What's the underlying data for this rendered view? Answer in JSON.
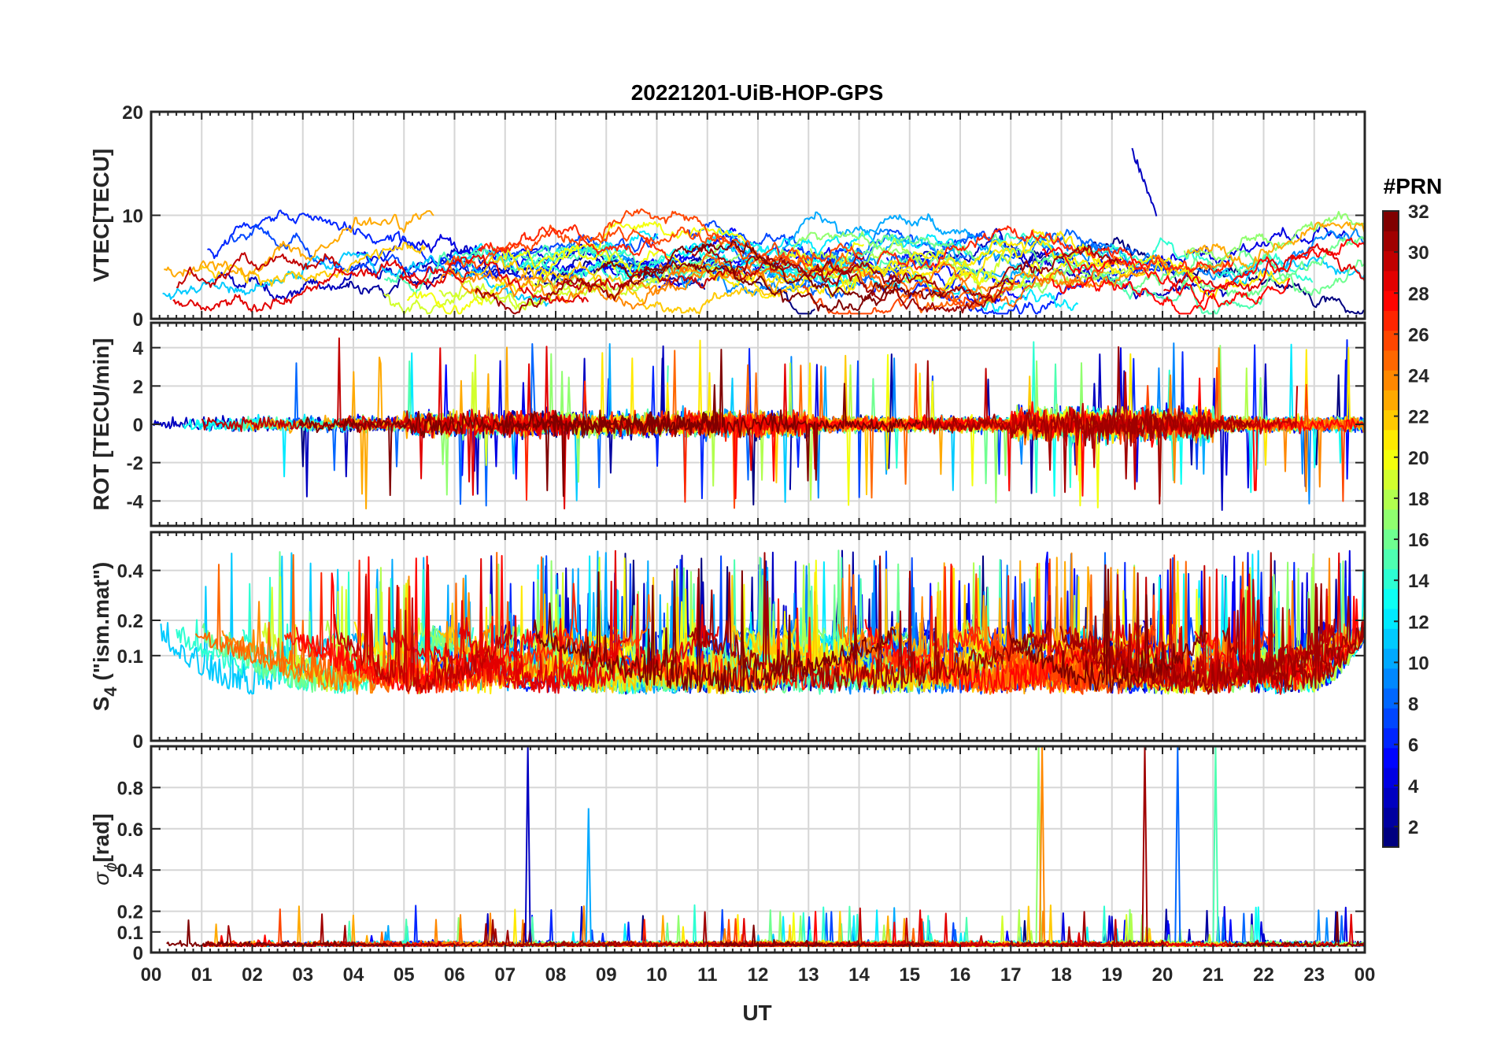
{
  "chart_data": {
    "type": "line",
    "title": "20221201-UiB-HOP-GPS",
    "xlabel": "UT",
    "x_tick_labels": [
      "00",
      "01",
      "02",
      "03",
      "04",
      "05",
      "06",
      "07",
      "08",
      "09",
      "10",
      "11",
      "12",
      "13",
      "14",
      "15",
      "16",
      "17",
      "18",
      "19",
      "20",
      "21",
      "22",
      "23",
      "00"
    ],
    "xlim_hours": [
      0,
      24
    ],
    "grid": true,
    "colorbar": {
      "title": "#PRN",
      "colormap": "jet",
      "range": [
        1,
        32
      ],
      "ticks": [
        2,
        4,
        6,
        8,
        10,
        12,
        14,
        16,
        18,
        20,
        22,
        24,
        26,
        28,
        30,
        32
      ],
      "tick_labels": [
        "2",
        "4",
        "6",
        "8",
        "10",
        "12",
        "14",
        "16",
        "18",
        "20",
        "22",
        "24",
        "26",
        "28",
        "30",
        "32"
      ]
    },
    "panels": [
      {
        "name": "vtec",
        "ylabel": "VTEC[TECU]",
        "ylim": [
          0,
          20
        ],
        "yticks": [
          0,
          10,
          20
        ],
        "ytick_labels": [
          "0",
          "10",
          "20"
        ],
        "typical_range": [
          1,
          10
        ],
        "peak": {
          "value": 16.3,
          "time_ut": 19.4,
          "prn": 3
        }
      },
      {
        "name": "rot",
        "ylabel": "ROT [TECU/min]",
        "ylim": [
          -5.3,
          5.3
        ],
        "yticks": [
          -4,
          -2,
          0,
          2,
          4
        ],
        "ytick_labels": [
          "-4",
          "-2",
          "0",
          "2",
          "4"
        ],
        "typical_range": [
          -1,
          1
        ]
      },
      {
        "name": "s4",
        "ylabel_main": "S",
        "ylabel_sub": "4",
        "ylabel_rest": " (\"ism.mat\")",
        "ylim": [
          0,
          0.6
        ],
        "yscale": "sqrt",
        "yticks": [
          0,
          0.1,
          0.2,
          0.4
        ],
        "ytick_labels": [
          "0",
          "0.1",
          "0.2",
          "0.4"
        ],
        "typical_range": [
          0.03,
          0.2
        ]
      },
      {
        "name": "sigma_phi",
        "ylabel_main": "σ",
        "ylabel_sub": "ϕ",
        "ylabel_rest": "[rad]",
        "ylim": [
          0,
          1
        ],
        "yticks": [
          0,
          0.1,
          0.2,
          0.4,
          0.6,
          0.8
        ],
        "ytick_labels": [
          "0",
          "0.1",
          "0.2",
          "0.4",
          "0.6",
          "0.8"
        ],
        "typical_range": [
          0.02,
          0.1
        ],
        "spikes": [
          {
            "time_ut": 7.45,
            "value": 1.0
          },
          {
            "time_ut": 8.65,
            "value": 0.7
          },
          {
            "time_ut": 17.55,
            "value": 1.0
          },
          {
            "time_ut": 17.62,
            "value": 1.0
          },
          {
            "time_ut": 19.65,
            "value": 1.0
          },
          {
            "time_ut": 20.3,
            "value": 1.0
          },
          {
            "time_ut": 21.05,
            "value": 1.0
          }
        ]
      }
    ]
  }
}
